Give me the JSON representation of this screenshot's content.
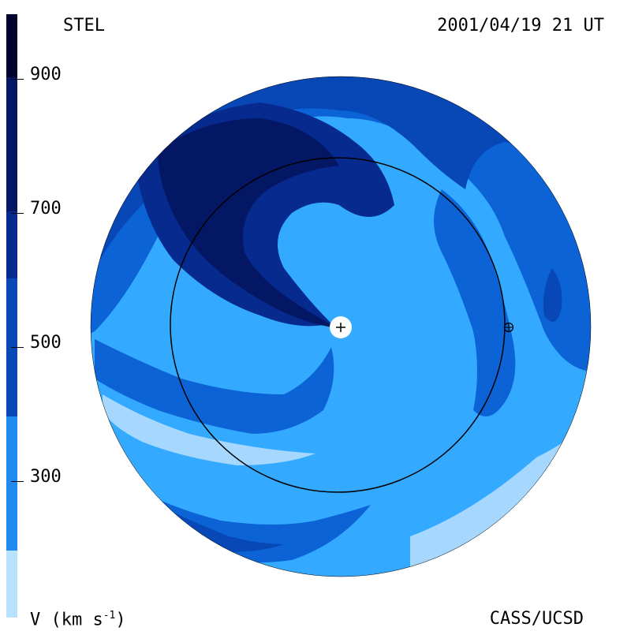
{
  "header": {
    "left_title": "STEL",
    "right_title": "2001/04/19 21 UT"
  },
  "footer": {
    "left": "V (km s",
    "left_exp": "-1",
    "left_close": ")",
    "right": "CASS/UCSD"
  },
  "colorbar": {
    "tick_labels": [
      "900",
      "700",
      "500",
      "300"
    ],
    "colors": [
      "#b9e2ff",
      "#33aaff",
      "#1f8bf0",
      "#0c63d6",
      "#0848b6",
      "#062a8e",
      "#041764",
      "#01042c"
    ]
  },
  "map": {
    "colors": {
      "c200": "#a6d8ff",
      "c300": "#33aaff",
      "c400": "#0c63d6",
      "c500": "#0848b6",
      "c600": "#062a8e",
      "c700": "#041764",
      "outline": "#000000",
      "sun": "#ffffff"
    },
    "markers": [
      "sun-marker",
      "earth-marker"
    ]
  }
}
